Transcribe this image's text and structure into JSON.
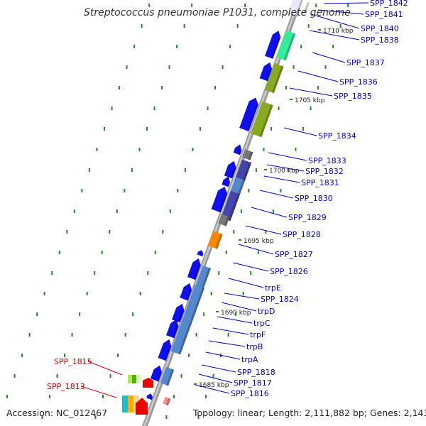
{
  "title": "Streptococcus pneumoniae P1031, complete genome",
  "footer": {
    "accession": "Accession: NC_012467",
    "stats": "Topology: linear; Length: 2,111,882 bp; Genes: 2,143"
  },
  "kbp_ticks": [
    "1710 kbp",
    "1705 kbp",
    "1700 kbp",
    "1695 kbp",
    "1690 kbp",
    "1685 kbp"
  ],
  "gene_labels": [
    {
      "text": "SPP_1842",
      "color": "#0000cc"
    },
    {
      "text": "SPP_1841",
      "color": "#0000cc"
    },
    {
      "text": "SPP_1840",
      "color": "#0000cc"
    },
    {
      "text": "SPP_1838",
      "color": "#0000cc"
    },
    {
      "text": "SPP_1837",
      "color": "#0000cc"
    },
    {
      "text": "SPP_1836",
      "color": "#0000cc"
    },
    {
      "text": "SPP_1835",
      "color": "#0000cc"
    },
    {
      "text": "SPP_1834",
      "color": "#0000cc"
    },
    {
      "text": "SPP_1833",
      "color": "#0000cc"
    },
    {
      "text": "SPP_1832",
      "color": "#0000cc"
    },
    {
      "text": "SPP_1831",
      "color": "#0000cc"
    },
    {
      "text": "SPP_1830",
      "color": "#0000cc"
    },
    {
      "text": "SPP_1829",
      "color": "#0000cc"
    },
    {
      "text": "SPP_1828",
      "color": "#0000cc"
    },
    {
      "text": "SPP_1827",
      "color": "#0000cc"
    },
    {
      "text": "SPP_1826",
      "color": "#0000cc"
    },
    {
      "text": "trpE",
      "color": "#0000cc"
    },
    {
      "text": "SPP_1824",
      "color": "#0000cc"
    },
    {
      "text": "trpD",
      "color": "#0000cc"
    },
    {
      "text": "trpC",
      "color": "#0000cc"
    },
    {
      "text": "trpF",
      "color": "#0000cc"
    },
    {
      "text": "trpB",
      "color": "#0000cc"
    },
    {
      "text": "trpA",
      "color": "#0000cc"
    },
    {
      "text": "SPP_1818",
      "color": "#0000cc"
    },
    {
      "text": "SPP_1817",
      "color": "#0000cc"
    },
    {
      "text": "SPP_1816",
      "color": "#0000cc"
    },
    {
      "text": "SPP_1815",
      "color": "#cc0000"
    },
    {
      "text": "SPP_1813",
      "color": "#cc0000"
    }
  ],
  "colors": {
    "forward_gene": "#1010ee",
    "label_blue": "#0000cc",
    "label_red": "#cc0000",
    "backbone": "#9a9a9a",
    "tick_green": "#1e8a1e"
  }
}
